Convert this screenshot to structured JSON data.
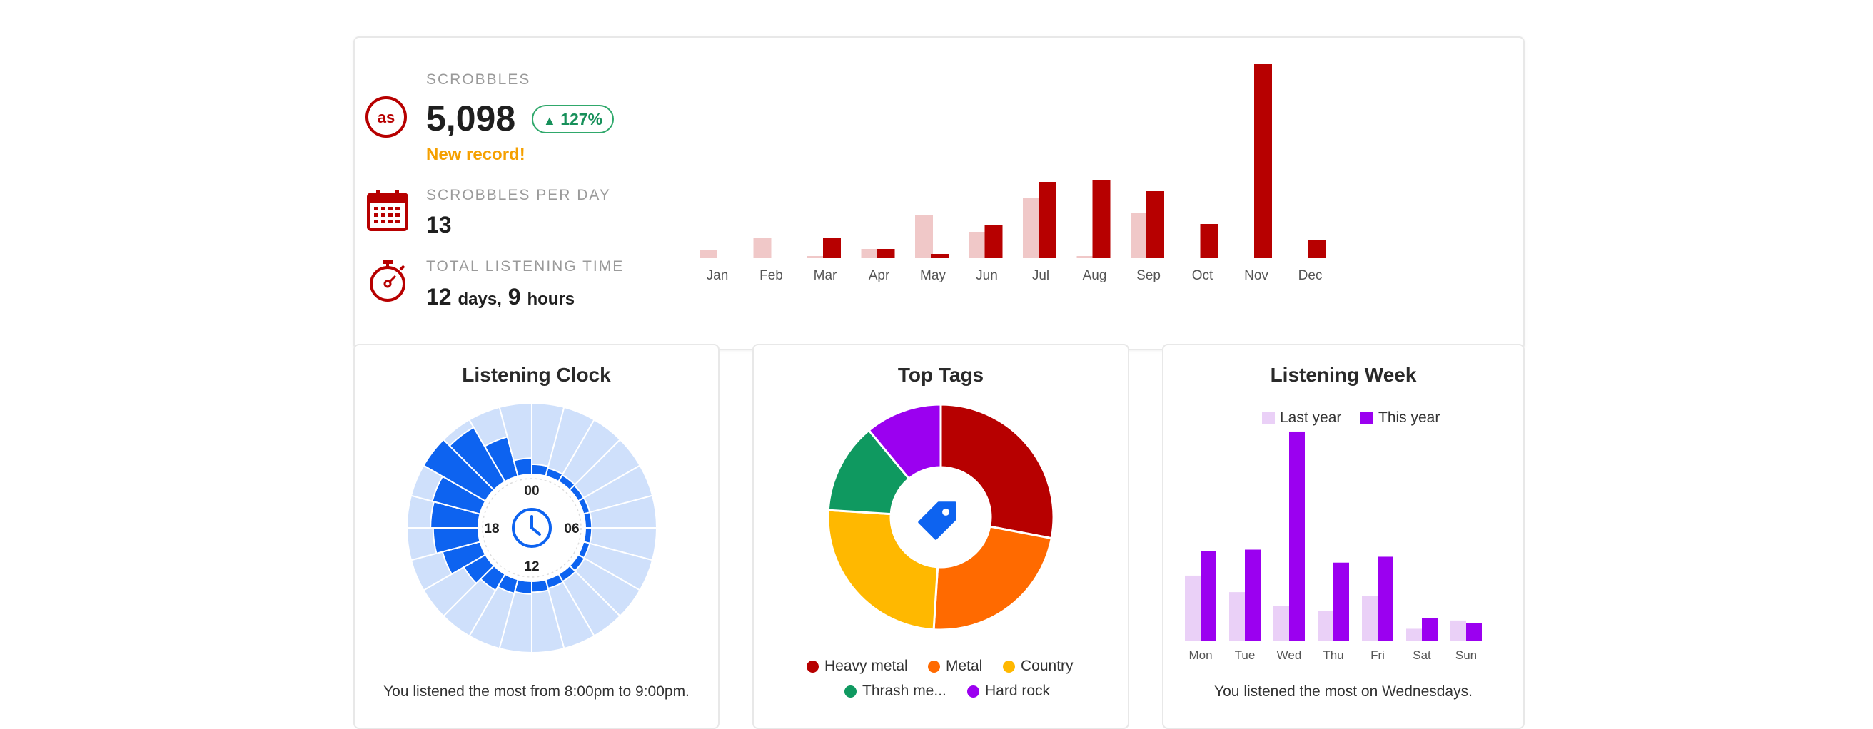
{
  "stats": {
    "scrobbles": {
      "label": "SCROBBLES",
      "value": "5,098",
      "change": "127%",
      "change_icon": "triangle-up-icon",
      "record": "New record!",
      "icon": "lastfm-icon"
    },
    "per_day": {
      "label": "SCROBBLES PER DAY",
      "value": "13",
      "icon": "calendar-icon"
    },
    "listening_time": {
      "label": "TOTAL LISTENING TIME",
      "days": "12",
      "days_unit": "days,",
      "hours": "9",
      "hours_unit": "hours",
      "icon": "stopwatch-icon"
    }
  },
  "colors": {
    "brand": "#b70000",
    "last_year": "#f0c8c8",
    "up_green": "#17905a",
    "record": "#f5a000",
    "clock_light": "#cfe0fb",
    "clock_dark": "#0d63f0",
    "week_last": "#ead0f7",
    "week_this": "#9b00f0"
  },
  "chart_data": [
    {
      "type": "bar",
      "categories": [
        "Jan",
        "Feb",
        "Mar",
        "Apr",
        "May",
        "Jun",
        "Jul",
        "Aug",
        "Sep",
        "Oct",
        "Nov",
        "Dec"
      ],
      "series": [
        {
          "values": [
            12,
            28,
            3,
            13,
            60,
            37,
            85,
            3,
            63,
            0,
            0,
            0
          ]
        },
        {
          "values": [
            0,
            0,
            28,
            13,
            6,
            47,
            107,
            109,
            94,
            48,
            272,
            25
          ]
        }
      ],
      "ylim": [
        0,
        275
      ]
    },
    {
      "type": "bar",
      "title": "Listening Clock",
      "categories": [
        "00",
        "01",
        "02",
        "03",
        "04",
        "05",
        "06",
        "07",
        "08",
        "09",
        "10",
        "11",
        "12",
        "13",
        "14",
        "15",
        "16",
        "17",
        "18",
        "19",
        "20",
        "21",
        "22",
        "23"
      ],
      "values": [
        5,
        3,
        2,
        1,
        1,
        1,
        1,
        1,
        2,
        3,
        4,
        6,
        8,
        10,
        15,
        22,
        38,
        45,
        48,
        50,
        75,
        65,
        40,
        12
      ],
      "center_labels": [
        "00",
        "06",
        "12",
        "18"
      ],
      "center_icon": "clock-icon",
      "caption": "You listened the most from 8:00pm to 9:00pm."
    },
    {
      "type": "pie",
      "title": "Top Tags",
      "labels": [
        "Heavy metal",
        "Metal",
        "Country",
        "Thrash me...",
        "Hard rock"
      ],
      "values": [
        28,
        23,
        25,
        13,
        11
      ],
      "colors": [
        "#b70000",
        "#ff6a00",
        "#ffb800",
        "#0f9960",
        "#9b00f0"
      ],
      "center_icon": "tag-icon"
    },
    {
      "type": "bar",
      "title": "Listening Week",
      "categories": [
        "Mon",
        "Tue",
        "Wed",
        "Thu",
        "Fri",
        "Sat",
        "Sun"
      ],
      "series": [
        {
          "name": "Last year",
          "values": [
            55,
            41,
            29,
            25,
            38,
            10,
            17
          ]
        },
        {
          "name": "This year",
          "values": [
            76,
            77,
            177,
            66,
            71,
            19,
            15
          ]
        }
      ],
      "ylim": [
        0,
        180
      ],
      "caption": "You listened the most on Wednesdays."
    }
  ]
}
